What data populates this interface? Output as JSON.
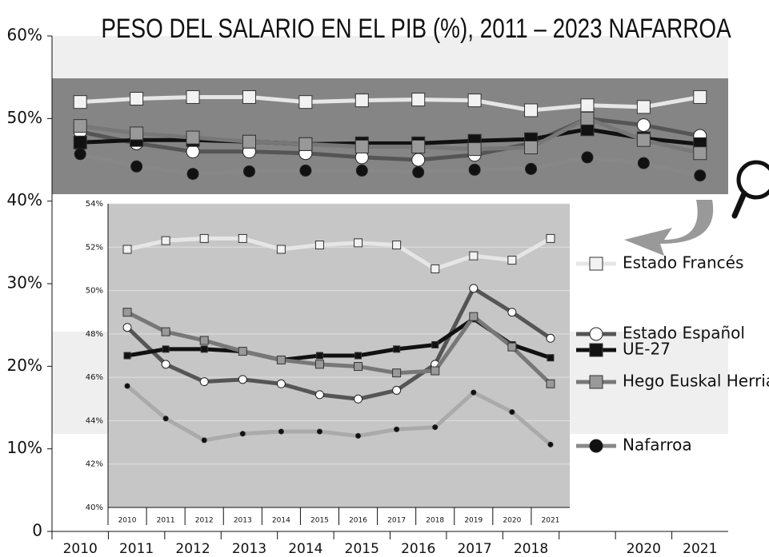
{
  "chart_data": [
    {
      "type": "line",
      "title": "PESO DEL SALARIO EN EL PIB (%), 2011 – 2023 NAFARROA",
      "categories": [
        "2010",
        "2011",
        "2012",
        "2013",
        "2014",
        "2015",
        "2016",
        "2017",
        "2018",
        null,
        "2020",
        "2021"
      ],
      "ylim": [
        0,
        60
      ],
      "yticks": [
        0,
        {
          "value": 10,
          "label": "10%"
        },
        {
          "value": 20,
          "label": "20%"
        },
        {
          "value": 30,
          "label": "30%"
        },
        {
          "value": 40,
          "label": "40%"
        },
        {
          "value": 50,
          "label": "50%"
        },
        {
          "value": 60,
          "label": "60%"
        }
      ],
      "grid": false,
      "legend": "right",
      "series": [
        {
          "name": "Estado Francés",
          "color": "#e6e6e6",
          "values": [
            52.0,
            52.4,
            52.6,
            52.6,
            52.0,
            52.2,
            52.3,
            52.2,
            51.0,
            51.6,
            51.4,
            52.6
          ]
        },
        {
          "name": "Estado Español",
          "color": "#555555",
          "values": [
            48.4,
            47.0,
            46.0,
            46.0,
            45.8,
            45.3,
            45.0,
            45.6,
            47.0,
            50.0,
            49.2,
            47.9
          ]
        },
        {
          "name": "UE-27",
          "color": "#111111",
          "values": [
            47.1,
            47.4,
            47.4,
            47.2,
            46.9,
            47.0,
            47.0,
            47.3,
            47.5,
            48.7,
            47.6,
            46.9
          ]
        },
        {
          "name": "Hego Euskal Herria",
          "color": "#777777",
          "values": [
            49.1,
            48.2,
            47.7,
            47.2,
            46.9,
            46.6,
            46.6,
            46.3,
            46.5,
            50.0,
            47.4,
            45.8
          ]
        },
        {
          "name": "Nafarroa",
          "color": "#888888",
          "values": [
            45.7,
            44.2,
            43.3,
            43.6,
            43.7,
            43.7,
            43.5,
            43.8,
            43.9,
            45.3,
            44.6,
            43.1
          ]
        }
      ]
    },
    {
      "type": "line",
      "categories": [
        "2010",
        "2011",
        "2012",
        "2013",
        "2014",
        "2015",
        "2016",
        "2017",
        "2018",
        "2019",
        "2020",
        "2021"
      ],
      "ylim": [
        40,
        54
      ],
      "yticks": [
        {
          "value": 40,
          "label": "40%"
        },
        {
          "value": 42,
          "label": "42%"
        },
        {
          "value": 44,
          "label": "44%"
        },
        {
          "value": 46,
          "label": "46%"
        },
        {
          "value": 48,
          "label": "48%"
        },
        {
          "value": 50,
          "label": "50%"
        },
        {
          "value": 52,
          "label": "52%"
        },
        {
          "value": 54,
          "label": "54%"
        }
      ],
      "grid": true,
      "series": [
        {
          "color": "#e6e6e6",
          "values": [
            51.9,
            52.3,
            52.4,
            52.4,
            51.9,
            52.1,
            52.2,
            52.1,
            51.0,
            51.6,
            51.4,
            52.4
          ]
        },
        {
          "color": "#555555",
          "values": [
            48.3,
            46.6,
            45.8,
            45.9,
            45.7,
            45.2,
            45.0,
            45.4,
            46.6,
            50.1,
            49.0,
            47.8
          ]
        },
        {
          "color": "#111111",
          "values": [
            47.0,
            47.3,
            47.3,
            47.2,
            46.8,
            47.0,
            47.0,
            47.3,
            47.5,
            48.7,
            47.5,
            46.9
          ]
        },
        {
          "color": "#777777",
          "values": [
            49.0,
            48.1,
            47.7,
            47.2,
            46.8,
            46.6,
            46.5,
            46.2,
            46.3,
            48.8,
            47.4,
            45.7
          ]
        },
        {
          "color": "#aaaaaa",
          "values": [
            45.6,
            44.1,
            43.1,
            43.4,
            43.5,
            43.5,
            43.3,
            43.6,
            43.7,
            45.3,
            44.4,
            42.9
          ]
        }
      ]
    }
  ]
}
